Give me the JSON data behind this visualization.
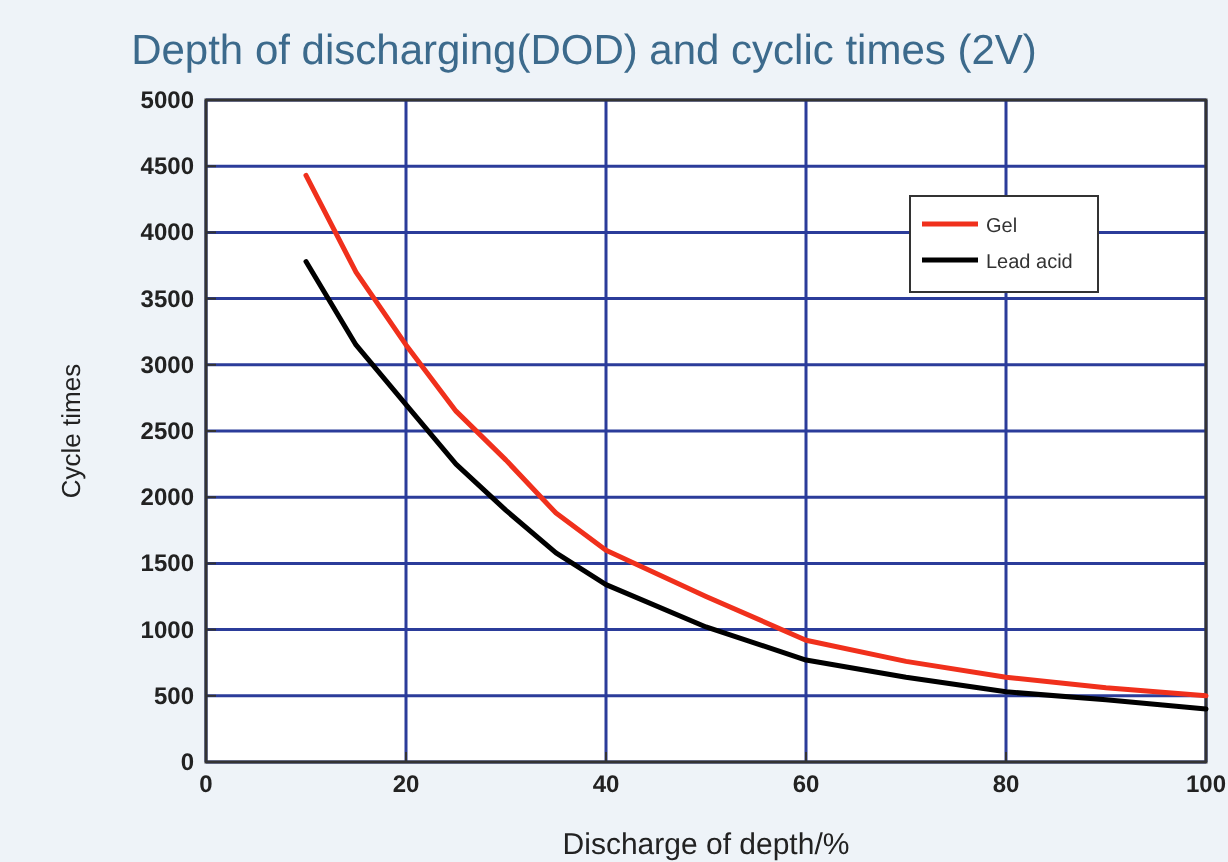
{
  "chart_data": {
    "type": "line",
    "title": "Depth of discharging(DOD) and cyclic times (2V)",
    "xlabel": "Discharge of depth/%",
    "ylabel": "Cycle times",
    "x": [
      10,
      15,
      20,
      25,
      30,
      35,
      40,
      50,
      60,
      70,
      80,
      90,
      100
    ],
    "series": [
      {
        "name": "Gel",
        "color": "#f0301c",
        "values": [
          4430,
          3700,
          3150,
          2650,
          2280,
          1880,
          1600,
          1250,
          920,
          760,
          640,
          560,
          500
        ]
      },
      {
        "name": "Lead acid",
        "color": "#000000",
        "values": [
          3780,
          3150,
          2700,
          2250,
          1900,
          1580,
          1340,
          1020,
          770,
          640,
          530,
          470,
          400
        ]
      }
    ],
    "xlim": [
      0,
      100
    ],
    "xticks": [
      0,
      20,
      40,
      60,
      80,
      100
    ],
    "ylim": [
      0,
      5000
    ],
    "yticks": [
      0,
      500,
      1000,
      1500,
      2000,
      2500,
      3000,
      3500,
      4000,
      4500,
      5000
    ],
    "grid": true,
    "legend": "top right",
    "marker": "none",
    "line_style": "solid"
  }
}
